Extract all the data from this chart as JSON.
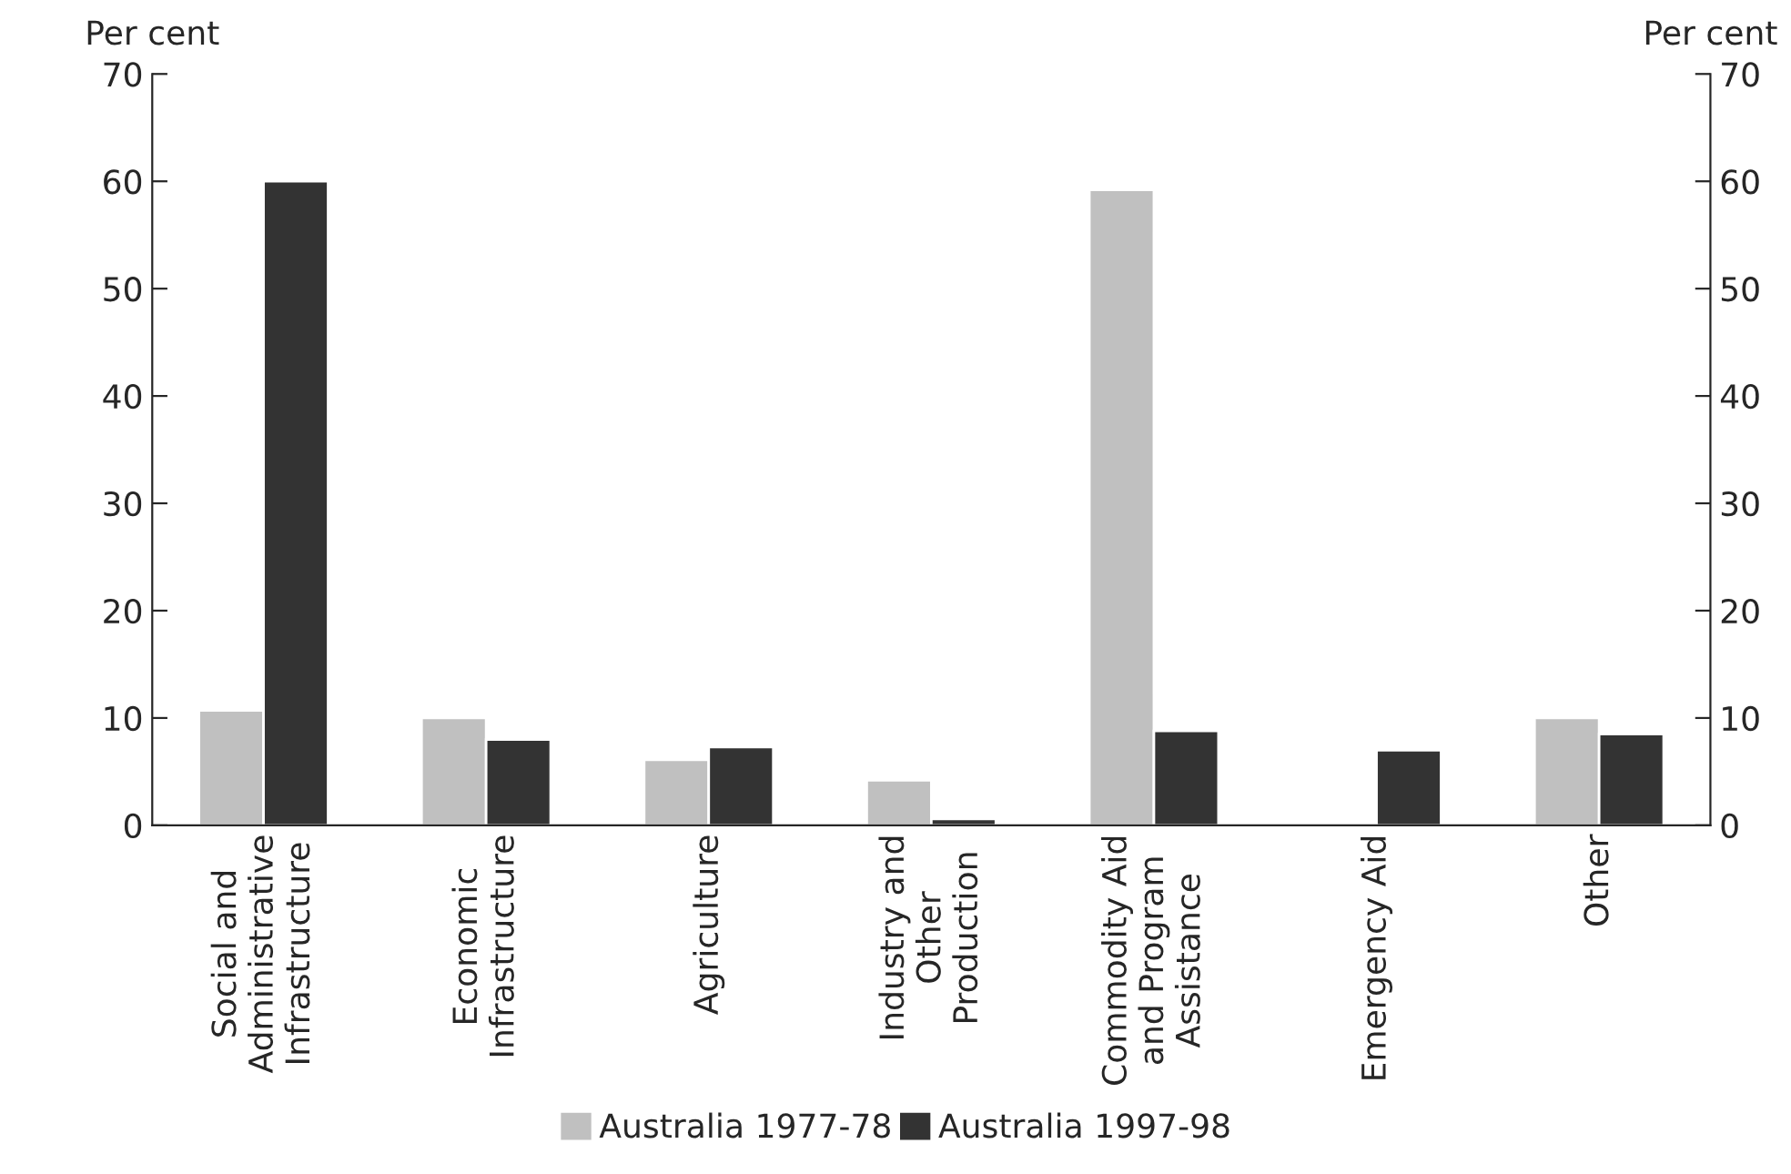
{
  "chart_data": {
    "type": "bar",
    "categories": [
      "Social and\nAdministrative\nInfrastructure",
      "Economic\nInfrastructure",
      "Agriculture",
      "Industry and\nOther\nProduction",
      "Commodity Aid\nand Program\nAssistance",
      "Emergency Aid",
      "Other"
    ],
    "series": [
      {
        "name": "Australia 1977-78",
        "color": "#c0c0c0",
        "values": [
          10.7,
          10.0,
          6.1,
          4.2,
          59.2,
          0.2,
          10.0
        ]
      },
      {
        "name": "Australia 1997-98",
        "color": "#333333",
        "values": [
          60.0,
          8.0,
          7.3,
          0.6,
          8.8,
          7.0,
          8.5
        ]
      }
    ],
    "ylabel": "Per cent",
    "y2label": "Per cent",
    "ylim": [
      0,
      70
    ],
    "yticks": [
      0,
      10,
      20,
      30,
      40,
      50,
      60,
      70
    ],
    "y2lim": [
      0,
      70
    ],
    "y2ticks": [
      0,
      10,
      20,
      30,
      40,
      50,
      60,
      70
    ],
    "grid": false,
    "legend": "bottom"
  }
}
